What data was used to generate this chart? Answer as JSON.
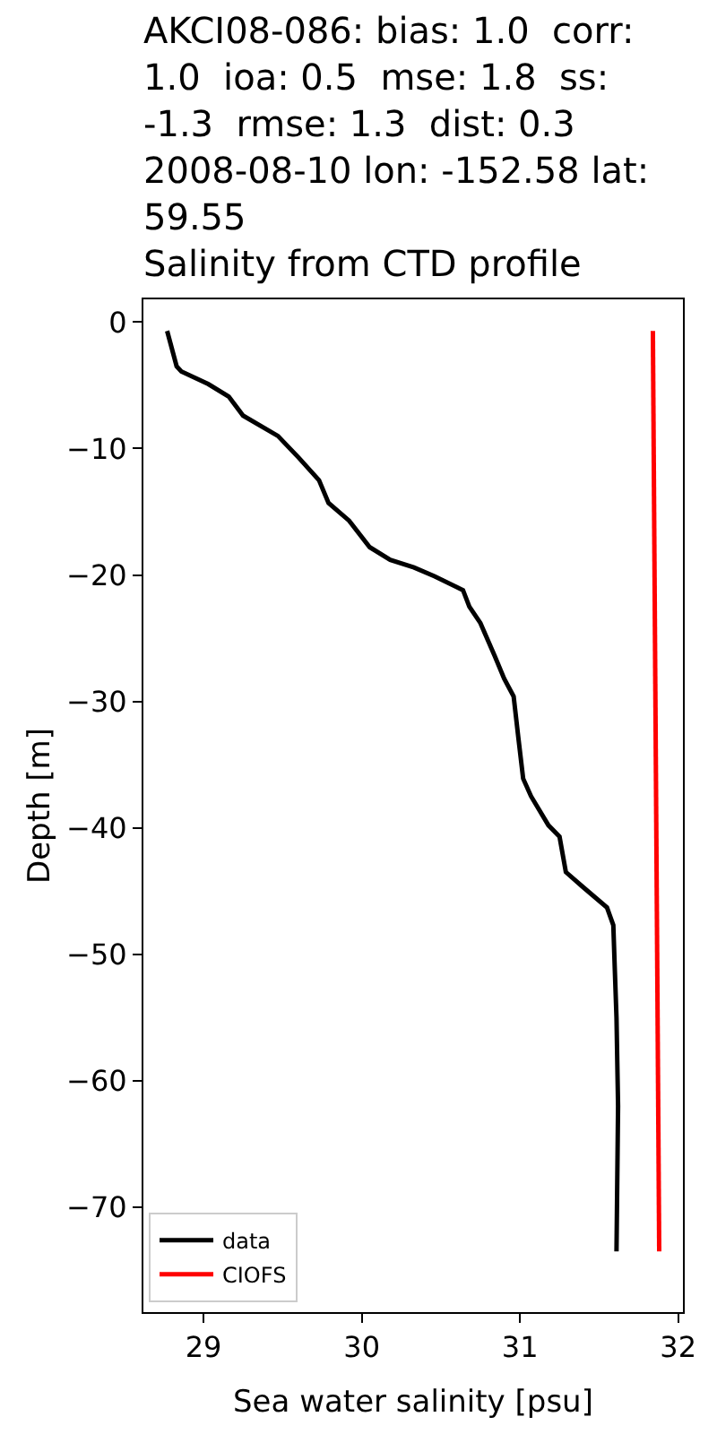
{
  "chart_data": {
    "type": "line",
    "title": "AKCI08-086: bias: 1.0  corr:\n1.0  ioa: 0.5  mse: 1.8  ss:\n-1.3  rmse: 1.3  dist: 0.3\n2008-08-10 lon: -152.58 lat:\n59.55\nSalinity from CTD profile",
    "xlabel": "Sea water salinity [psu]",
    "ylabel": "Depth [m]",
    "series": [
      {
        "name": "data",
        "color": "#000000",
        "x": [
          28.77,
          28.83,
          28.86,
          29.03,
          29.16,
          29.25,
          29.47,
          29.6,
          29.73,
          29.79,
          29.92,
          30.05,
          30.18,
          30.33,
          30.46,
          30.64,
          30.68,
          30.75,
          30.84,
          30.9,
          30.96,
          30.99,
          31.02,
          31.07,
          31.18,
          31.25,
          31.29,
          31.4,
          31.55,
          31.59,
          31.6,
          31.61,
          31.62,
          31.61
        ],
        "values": [
          -0.7,
          -3.5,
          -3.9,
          -4.9,
          -5.9,
          -7.4,
          -9.0,
          -10.7,
          -12.5,
          -14.3,
          -15.7,
          -17.8,
          -18.8,
          -19.4,
          -20.1,
          -21.2,
          -22.5,
          -23.8,
          -26.4,
          -28.2,
          -29.6,
          -32.9,
          -36.1,
          -37.5,
          -39.8,
          -40.7,
          -43.5,
          -44.7,
          -46.3,
          -47.7,
          -51.4,
          -55,
          -62,
          -73.5
        ]
      },
      {
        "name": "CIOFS",
        "color": "#ff0000",
        "x": [
          31.84,
          31.88
        ],
        "values": [
          -0.7,
          -73.5
        ]
      }
    ],
    "xlim": [
      28.62,
      32.03
    ],
    "xticks": [
      29,
      30,
      31,
      32
    ],
    "ylim": [
      -78.3,
      1.8
    ],
    "yticks": [
      0,
      -10,
      -20,
      -30,
      -40,
      -50,
      -60,
      -70
    ],
    "legend": "bottom left",
    "marker": "none",
    "line_style": "solid"
  }
}
